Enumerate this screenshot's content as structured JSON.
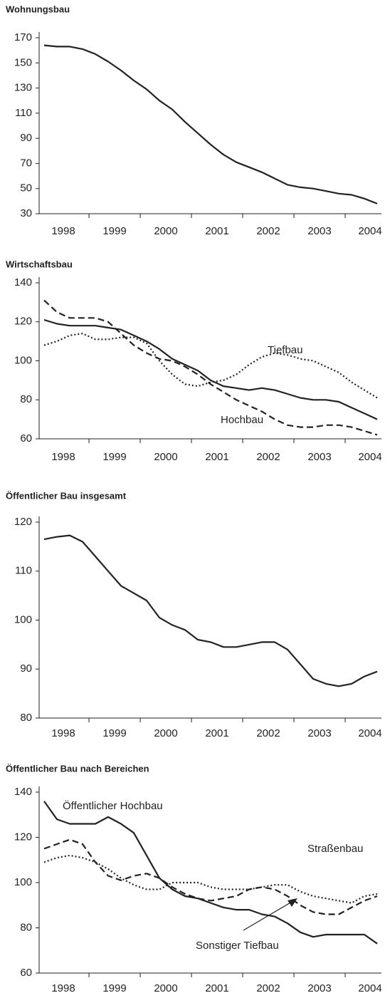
{
  "chart_data": [
    {
      "type": "line",
      "title": "Wohnungsbau",
      "categories": [
        null,
        "1998",
        null,
        null,
        null,
        "1999",
        null,
        null,
        null,
        "2000",
        null,
        null,
        null,
        "2001",
        null,
        null,
        null,
        "2002",
        null,
        null,
        null,
        "2003",
        null,
        null,
        null,
        "2004",
        null
      ],
      "series": [
        {
          "color": "#222222",
          "style": "solid",
          "values": [
            164,
            163,
            163,
            161,
            157,
            151,
            144,
            136,
            129,
            120,
            113,
            103,
            94,
            85,
            77,
            71,
            67,
            63,
            58,
            53,
            51,
            50,
            48,
            46,
            45,
            42,
            38
          ]
        }
      ],
      "ylim": [
        30,
        170
      ],
      "yticks": [
        30,
        50,
        70,
        90,
        110,
        130,
        150,
        170
      ]
    },
    {
      "type": "line",
      "title": "Wirtschaftsbau",
      "categories": [
        null,
        "1998",
        null,
        null,
        null,
        "1999",
        null,
        null,
        null,
        "2000",
        null,
        null,
        null,
        "2001",
        null,
        null,
        null,
        "2002",
        null,
        null,
        null,
        "2003",
        null,
        null,
        null,
        "2004",
        null
      ],
      "series": [
        {
          "color": "#222222",
          "style": "solid",
          "values": [
            121,
            119,
            118,
            118,
            118,
            117,
            116,
            113,
            110,
            106,
            101,
            98,
            95,
            90,
            87,
            86,
            85,
            86,
            85,
            83,
            81,
            80,
            80,
            79,
            76,
            73,
            70
          ]
        },
        {
          "name": "Hochbau",
          "color": "#222222",
          "style": "dashed",
          "values": [
            131,
            125,
            122,
            122,
            122,
            120,
            114,
            108,
            104,
            101,
            100,
            97,
            93,
            88,
            84,
            80,
            77,
            74,
            70,
            67,
            66,
            66,
            67,
            67,
            66,
            64,
            62
          ]
        },
        {
          "name": "Tiefbau",
          "color": "#222222",
          "style": "dotted",
          "values": [
            108,
            110,
            113,
            114,
            111,
            111,
            112,
            112,
            109,
            100,
            93,
            88,
            87,
            89,
            90,
            93,
            98,
            102,
            104,
            103,
            101,
            100,
            97,
            94,
            89,
            85,
            81
          ]
        }
      ],
      "ylim": [
        60,
        140
      ],
      "yticks": [
        60,
        80,
        100,
        120,
        140
      ]
    },
    {
      "type": "line",
      "title": "Öffentlicher Bau insgesamt",
      "categories": [
        null,
        "1998",
        null,
        null,
        null,
        "1999",
        null,
        null,
        null,
        "2000",
        null,
        null,
        null,
        "2001",
        null,
        null,
        null,
        "2002",
        null,
        null,
        null,
        "2003",
        null,
        null,
        null,
        "2004",
        null
      ],
      "series": [
        {
          "color": "#222222",
          "style": "solid",
          "values": [
            116.5,
            117,
            117.3,
            116,
            113,
            110,
            107,
            105.5,
            104,
            100.5,
            99,
            98,
            96,
            95.5,
            94.5,
            94.5,
            95,
            95.5,
            95.5,
            94,
            91,
            88,
            87,
            86.5,
            87,
            88.5,
            89.5
          ]
        }
      ],
      "ylim": [
        80,
        120
      ],
      "yticks": [
        80,
        90,
        100,
        110,
        120
      ]
    },
    {
      "type": "line",
      "title": "Öffentlicher Bau nach Bereichen",
      "categories": [
        null,
        "1998",
        null,
        null,
        null,
        "1999",
        null,
        null,
        null,
        "2000",
        null,
        null,
        null,
        "2001",
        null,
        null,
        null,
        "2002",
        null,
        null,
        null,
        "2003",
        null,
        null,
        null,
        "2004",
        null
      ],
      "series": [
        {
          "name": "Öffentlicher Hochbau",
          "color": "#222222",
          "style": "solid",
          "values": [
            136,
            128,
            126,
            126,
            126,
            129,
            126,
            122,
            112,
            102,
            97,
            94,
            93,
            91,
            89,
            88,
            88,
            86,
            85,
            82,
            78,
            76,
            77,
            77,
            77,
            77,
            73
          ]
        },
        {
          "name": "Straßenbau",
          "color": "#222222",
          "style": "dotted",
          "values": [
            109,
            111,
            112,
            111,
            109,
            106,
            102,
            99,
            97,
            97,
            100,
            100,
            100,
            98,
            97,
            97,
            97,
            98,
            99,
            99,
            96,
            94,
            93,
            92,
            91,
            94,
            95
          ]
        },
        {
          "name": "Sonstiger Tiefbau",
          "color": "#222222",
          "style": "dashed",
          "values": [
            115,
            117,
            119,
            117,
            109,
            103,
            101,
            103,
            104,
            102,
            98,
            95,
            93,
            92,
            93,
            94,
            97,
            98,
            97,
            94,
            90,
            87,
            86,
            86,
            89,
            92,
            94
          ]
        }
      ],
      "ylim": [
        60,
        140
      ],
      "yticks": [
        60,
        80,
        100,
        120,
        140
      ]
    }
  ]
}
